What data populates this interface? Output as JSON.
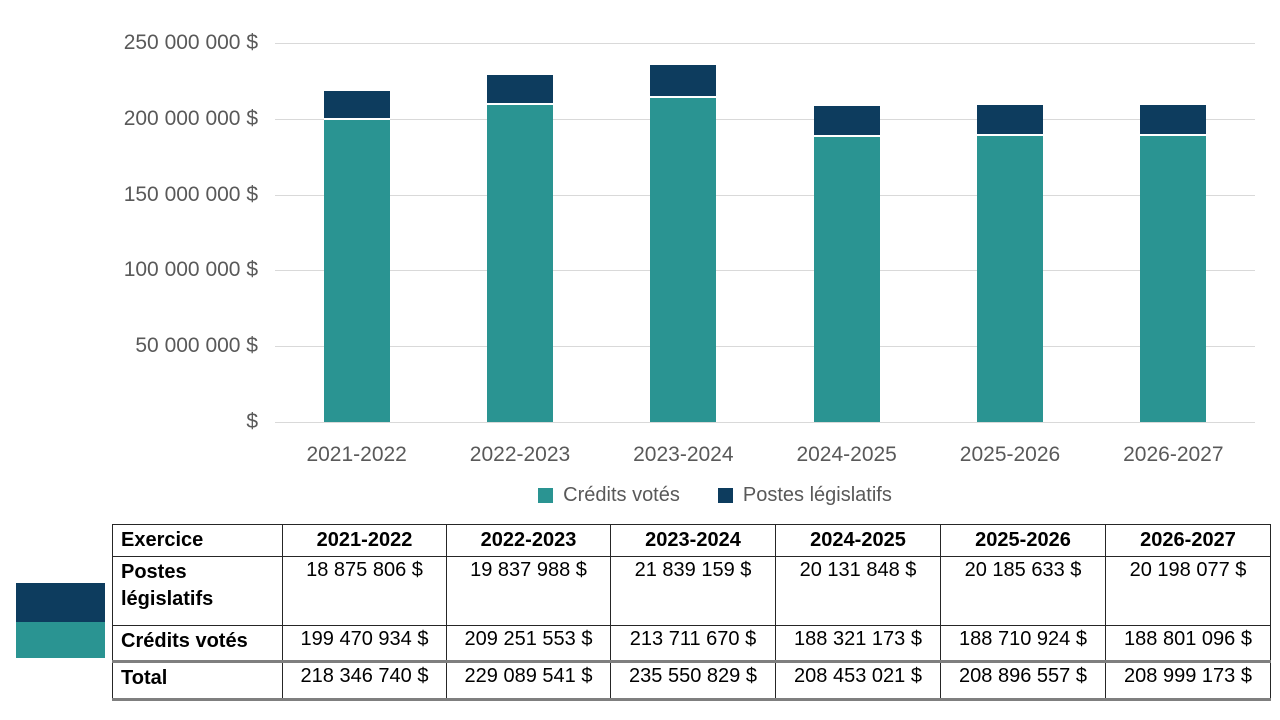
{
  "chart_data": {
    "type": "bar",
    "stacked": true,
    "title": "",
    "xlabel": "",
    "ylabel": "",
    "categories": [
      "2021-2022",
      "2022-2023",
      "2023-2024",
      "2024-2025",
      "2025-2026",
      "2026-2027"
    ],
    "series": [
      {
        "name": "Crédits votés",
        "color": "#2A9492",
        "values": [
          199470934,
          209251553,
          213711670,
          188321173,
          188710924,
          188801096
        ]
      },
      {
        "name": "Postes législatifs",
        "color": "#0D3C5E",
        "values": [
          18875806,
          19837988,
          21839159,
          20131848,
          20185633,
          20198077
        ]
      }
    ],
    "totals": [
      218346740,
      229089541,
      235550829,
      208453021,
      208896557,
      208999173
    ],
    "ylim": [
      0,
      250000000
    ],
    "ytick_step": 50000000,
    "ytick_labels": [
      "$",
      "50 000 000 $",
      "100 000 000 $",
      "150 000 000 $",
      "200 000 000 $",
      "250 000 000 $"
    ],
    "grid": true,
    "legend_position": "bottom"
  },
  "table": {
    "header": [
      "Exercice",
      "2021-2022",
      "2022-2023",
      "2023-2024",
      "2024-2025",
      "2025-2026",
      "2026-2027"
    ],
    "rows": [
      {
        "label": "Postes législatifs",
        "values": [
          "18 875 806 $",
          "19 837 988 $",
          "21 839 159 $",
          "20 131 848 $",
          "20 185 633 $",
          "20 198 077 $"
        ]
      },
      {
        "label": "Crédits votés",
        "values": [
          "199 470 934 $",
          "209 251 553 $",
          "213 711 670 $",
          "188 321 173 $",
          "188 710 924 $",
          "188 801 096 $"
        ]
      },
      {
        "label": "Total",
        "values": [
          "218 346 740 $",
          "229 089 541 $",
          "235 550 829 $",
          "208 453 021 $",
          "208 896 557 $",
          "208 999 173 $"
        ]
      }
    ]
  },
  "colors": {
    "teal": "#2A9492",
    "navy": "#0D3C5E",
    "gridline": "#D9D9D9",
    "axis_text": "#595959",
    "table_border": "#262626",
    "table_thick_border": "#7F7F7F"
  }
}
